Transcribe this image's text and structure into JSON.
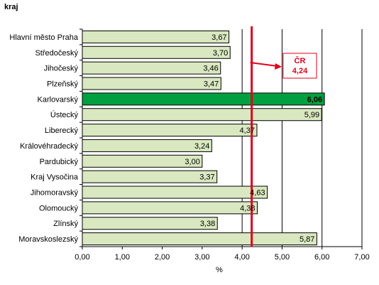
{
  "corner_label": "kraj",
  "chart_data": {
    "type": "bar",
    "orientation": "horizontal",
    "title": "",
    "ylabel": "kraj",
    "xlabel": "%",
    "xlim": [
      0,
      7
    ],
    "x_ticks": [
      "0,00",
      "1,00",
      "2,00",
      "3,00",
      "4,00",
      "5,00",
      "6,00",
      "7,00"
    ],
    "grid": "vertical",
    "categories": [
      "Hlavní město Praha",
      "Středočeský",
      "Jihočeský",
      "Plzeňský",
      "Karlovarský",
      "Ústecký",
      "Liberecký",
      "Královéhradecký",
      "Pardubický",
      "Kraj Vysočina",
      "Jihomoravský",
      "Olomoucký",
      "Zlínský",
      "Moravskoslezský"
    ],
    "values": [
      3.67,
      3.7,
      3.46,
      3.47,
      6.06,
      5.99,
      4.37,
      3.24,
      3.0,
      3.37,
      4.63,
      4.38,
      3.38,
      5.87
    ],
    "value_labels": [
      "3,67",
      "3,70",
      "3,46",
      "3,47",
      "6,06",
      "5,99",
      "4,37",
      "3,24",
      "3,00",
      "3,37",
      "4,63",
      "4,38",
      "3,38",
      "5,87"
    ],
    "highlight_index": 4,
    "reference_line": {
      "value": 4.24,
      "label_line1": "ČR",
      "label_line2": "4,24"
    },
    "colors": {
      "bar": "#d9e8c0",
      "bar_border": "#000000",
      "highlight_bar": "#00a040",
      "reference": "#e0001a",
      "grid": "#000000"
    }
  }
}
